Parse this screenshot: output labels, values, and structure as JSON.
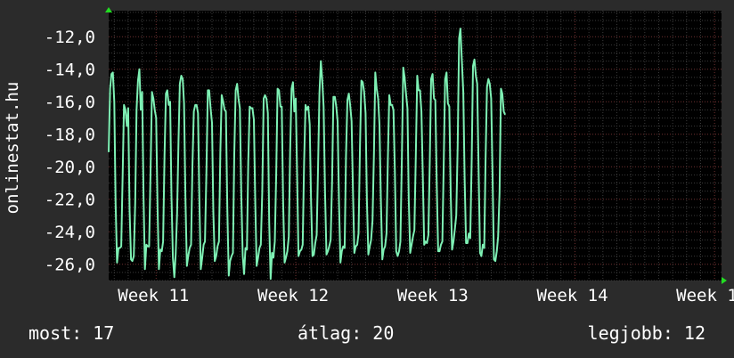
{
  "colors": {
    "background": "#2b2b2b",
    "plot_background": "#000000",
    "grid_minor": "#3a3a3a",
    "grid_major": "#6e3030",
    "series_line": "#7ef0b4",
    "axis_arrow": "#22dd22"
  },
  "stats": {
    "now": "most: 17",
    "avg": "átlag: 20",
    "best": "legjobb: 12"
  },
  "chart_data": {
    "type": "line",
    "title": "",
    "ylabel": "onlinestat.hu",
    "xlabel": "",
    "ylim": [
      -27,
      -10.4
    ],
    "xlim": [
      10.66,
      15.05
    ],
    "grid": true,
    "x_tick_labels": [
      "Week 11",
      "Week 12",
      "Week 13",
      "Week 14",
      "Week 15"
    ],
    "x_tick_values": [
      11,
      12,
      13,
      14,
      15
    ],
    "y_tick_labels": [
      "-12,0",
      "-14,0",
      "-16,0",
      "-18,0",
      "-20,0",
      "-22,0",
      "-24,0",
      "-26,0"
    ],
    "y_tick_values": [
      -12,
      -14,
      -16,
      -18,
      -20,
      -22,
      -24,
      -26
    ],
    "series": [
      {
        "x_start": 10.66,
        "x_step": 0.01,
        "values": [
          -19.1,
          -15.2,
          -14.3,
          -14.2,
          -16,
          -22.3,
          -25.9,
          -25,
          -25,
          -24.9,
          -20.5,
          -16.2,
          -16.5,
          -17.5,
          -16.4,
          -22.7,
          -25.7,
          -25.8,
          -25.5,
          -22.2,
          -16.5,
          -14.7,
          -14,
          -16.5,
          -15.4,
          -22,
          -26.3,
          -24.8,
          -24.9,
          -24.9,
          -20.3,
          -15.4,
          -15.8,
          -16.5,
          -17,
          -22.6,
          -26.3,
          -25.1,
          -25.2,
          -24.6,
          -19.3,
          -15.5,
          -15.3,
          -16.2,
          -16,
          -21.8,
          -25.6,
          -26.8,
          -25.4,
          -22.9,
          -18.4,
          -14.9,
          -14.4,
          -14.6,
          -16.1,
          -22,
          -26.1,
          -25.5,
          -25,
          -24.8,
          -20,
          -16.6,
          -16.2,
          -16.2,
          -16.7,
          -22.3,
          -26.3,
          -25.6,
          -24.8,
          -24.6,
          -20.4,
          -15.3,
          -15.3,
          -16.4,
          -17.3,
          -22.8,
          -25.8,
          -25.5,
          -24.9,
          -24.6,
          -19,
          -15.6,
          -16,
          -16.5,
          -16.6,
          -22.6,
          -26.7,
          -25.8,
          -25.5,
          -25.3,
          -19.2,
          -15.3,
          -14.9,
          -15.8,
          -16.4,
          -21.8,
          -25.5,
          -26.6,
          -25,
          -25.1,
          -19.7,
          -16.3,
          -16.4,
          -16.4,
          -17.1,
          -22.3,
          -26.1,
          -25.6,
          -25,
          -24.8,
          -21.6,
          -15.8,
          -15.6,
          -15.8,
          -16.7,
          -23.4,
          -26.9,
          -25.3,
          -25.6,
          -24.6,
          -20.4,
          -15.2,
          -15.3,
          -16.3,
          -16.3,
          -22.3,
          -25.9,
          -25.6,
          -25.2,
          -24.3,
          -19.1,
          -15.2,
          -14.8,
          -16.6,
          -15.8,
          -20.7,
          -25.5,
          -25.2,
          -25.1,
          -24.8,
          -19.7,
          -16.2,
          -16.5,
          -16.3,
          -17.4,
          -22.1,
          -25.5,
          -25.4,
          -24.7,
          -24.2,
          -19.9,
          -15.5,
          -13.5,
          -14.7,
          -16.3,
          -21.6,
          -25.4,
          -25.2,
          -24.9,
          -24.5,
          -20.9,
          -15.7,
          -15.7,
          -16.3,
          -17.2,
          -22.3,
          -25.9,
          -25.2,
          -24.9,
          -25,
          -19.4,
          -15.9,
          -15.5,
          -16.2,
          -17.2,
          -21.6,
          -25.3,
          -24.9,
          -24.8,
          -24.1,
          -18.8,
          -14.7,
          -14.8,
          -15.4,
          -16.7,
          -22.1,
          -25.4,
          -24.9,
          -24.5,
          -23.3,
          -19.2,
          -14.2,
          -15.2,
          -15.8,
          -17.4,
          -22.1,
          -25.7,
          -25.1,
          -24.9,
          -24.1,
          -19.6,
          -15.6,
          -16.2,
          -16.2,
          -16.5,
          -20.3,
          -25.2,
          -25.5,
          -25.2,
          -24.6,
          -19.6,
          -13.9,
          -14.5,
          -15.5,
          -16.4,
          -22.1,
          -25.3,
          -24.8,
          -24.3,
          -23.9,
          -19.3,
          -14.4,
          -15.3,
          -15.3,
          -16.6,
          -20.4,
          -24.8,
          -24.6,
          -24.7,
          -24.2,
          -19.6,
          -14.6,
          -14.3,
          -15.8,
          -15.9,
          -21.1,
          -25.2,
          -25.2,
          -24.8,
          -24.6,
          -19.9,
          -14.6,
          -14.2,
          -16.1,
          -16.3,
          -21.7,
          -25.1,
          -24.6,
          -23.8,
          -23,
          -18.7,
          -12.1,
          -11.5,
          -13.5,
          -15.4,
          -20.7,
          -24.7,
          -24.7,
          -24.1,
          -24.4,
          -19.7,
          -13.8,
          -13.4,
          -14.4,
          -14.9,
          -20.2,
          -25.3,
          -25.5,
          -24.8,
          -25,
          -19.6,
          -15.1,
          -14.6,
          -14.9,
          -15.8,
          -20.7,
          -25.7,
          -25.8,
          -25.2,
          -24.3,
          -21.6,
          -15.2,
          -15.5,
          -16.6,
          -16.8
        ]
      }
    ]
  }
}
